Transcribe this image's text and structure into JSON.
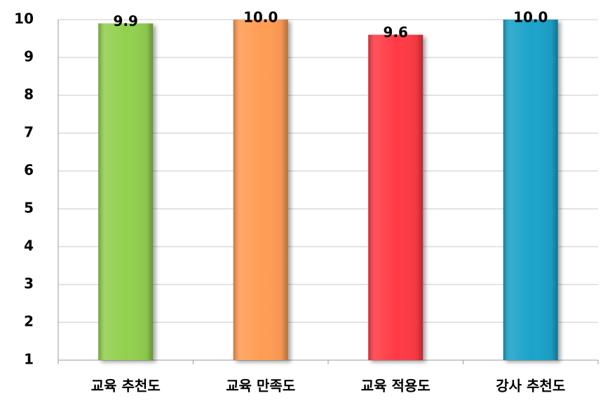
{
  "chart_data": {
    "type": "bar",
    "categories": [
      "교육 추천도",
      "교육 만족도",
      "교육 적용도",
      "강사 추천도"
    ],
    "values": [
      9.9,
      10.0,
      9.6,
      10.0
    ],
    "value_labels": [
      "9.9",
      "10.0",
      "9.6",
      "10.0"
    ],
    "colors": [
      "#92d050",
      "#ff9d55",
      "#ff3a45",
      "#1aa3ca"
    ],
    "ylim": [
      1,
      10
    ],
    "yticks": [
      1,
      2,
      3,
      4,
      5,
      6,
      7,
      8,
      9,
      10
    ],
    "grid": true
  }
}
